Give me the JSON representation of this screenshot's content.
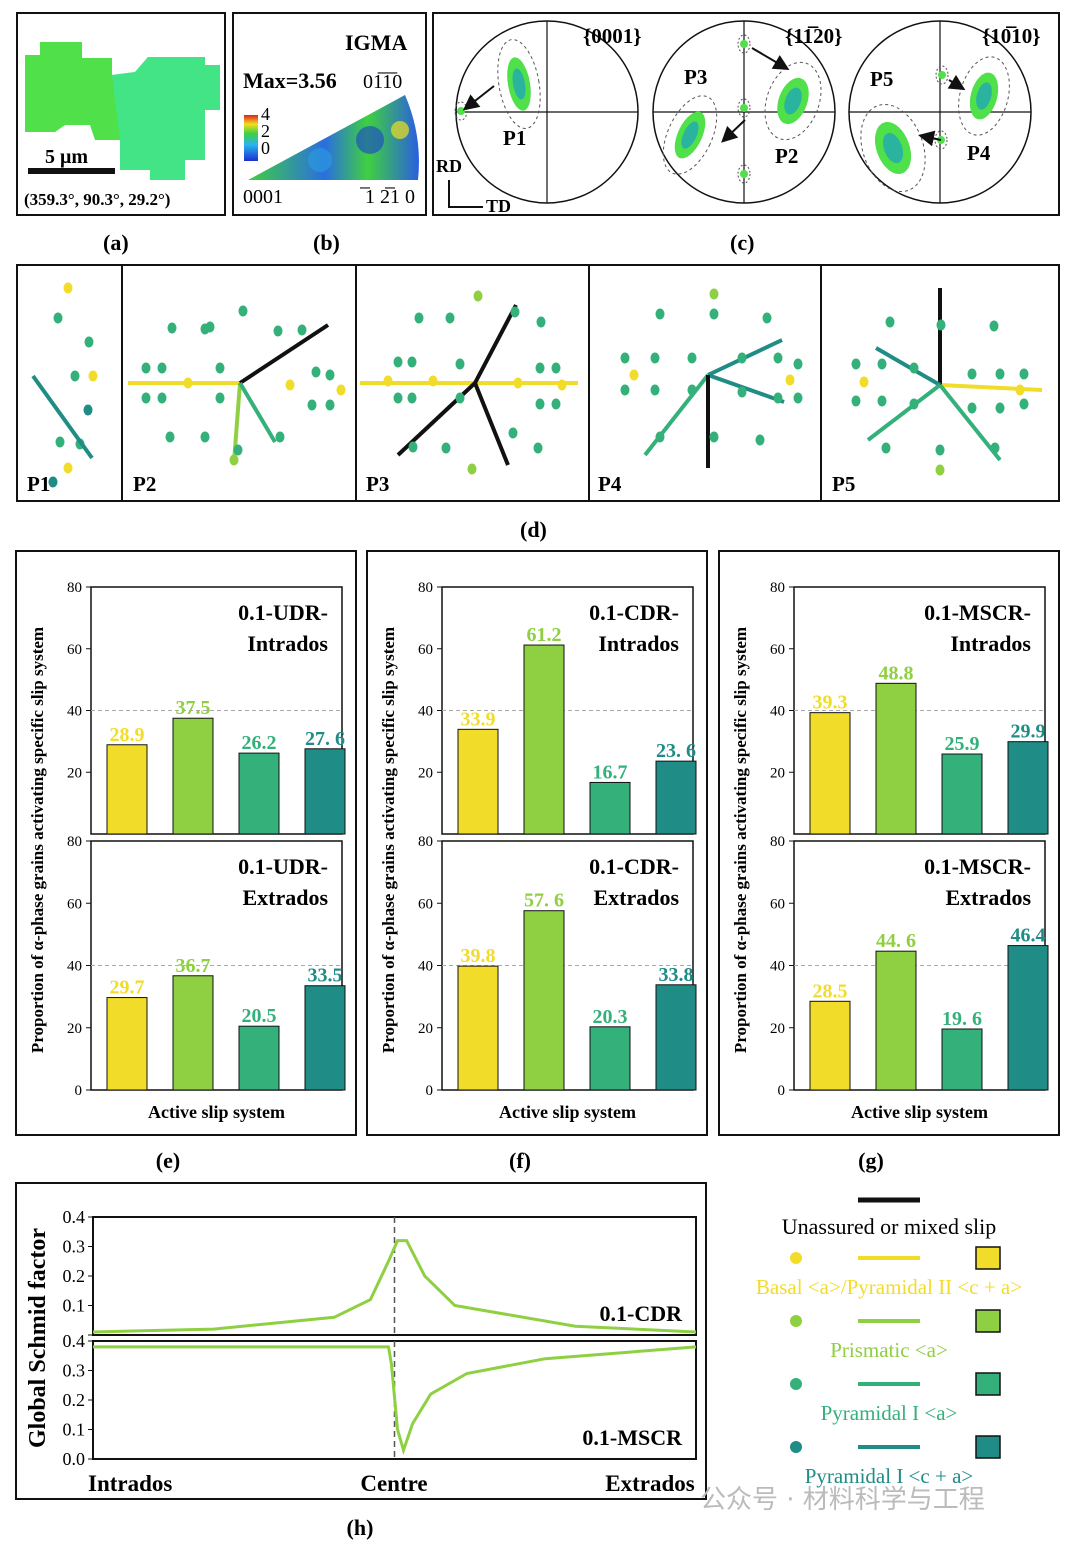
{
  "colors": {
    "basal": "#f2dc2a",
    "prismatic": "#8fcf42",
    "pyrI_a": "#34b07a",
    "pyrI_ca": "#1f8c86",
    "black": "#111111",
    "grain": "#4fe04a",
    "grain2": "#3fe6a0"
  },
  "panel_labels": [
    "(a)",
    "(b)",
    "(c)",
    "(d)",
    "(e)",
    "(f)",
    "(g)",
    "(h)"
  ],
  "panel_a": {
    "scale": "5 μm",
    "euler": "(359.3°, 90.3°, 29.2°)"
  },
  "panel_b": {
    "title": "IGMA",
    "max": "Max=3.56",
    "corner_top": "01̅1̅0",
    "corner_bl": "0001",
    "corner_br": "̅1 2̅1 0",
    "bar_ticks": [
      "4",
      "2",
      "0"
    ]
  },
  "panel_c": {
    "pf1": "{0001}",
    "pf2": "{11̅20}",
    "pf3": "{10̅10}",
    "rd": "RD",
    "td": "TD",
    "p_labels": [
      "P1",
      "P3",
      "P2",
      "P5",
      "P4"
    ]
  },
  "panel_d": {
    "labels": [
      "P1",
      "P2",
      "P3",
      "P4",
      "P5"
    ]
  },
  "chart_data": [
    {
      "type": "bar",
      "panel": "e-top",
      "title": [
        "0.1-UDR-",
        "Intrados"
      ],
      "values": [
        28.9,
        37.5,
        26.2,
        27.6
      ],
      "labels": [
        "28.9",
        "37.5",
        "26.2",
        "27. 6"
      ],
      "ylim": [
        0,
        80
      ]
    },
    {
      "type": "bar",
      "panel": "e-bottom",
      "title": [
        "0.1-UDR-",
        "Extrados"
      ],
      "values": [
        29.7,
        36.7,
        20.5,
        33.5
      ],
      "labels": [
        "29.7",
        "36.7",
        "20.5",
        "33.5"
      ],
      "ylim": [
        0,
        80
      ]
    },
    {
      "type": "bar",
      "panel": "f-top",
      "title": [
        "0.1-CDR-",
        "Intrados"
      ],
      "values": [
        33.9,
        61.2,
        16.7,
        23.6
      ],
      "labels": [
        "33.9",
        "61.2",
        "16.7",
        "23. 6"
      ],
      "ylim": [
        0,
        80
      ]
    },
    {
      "type": "bar",
      "panel": "f-bottom",
      "title": [
        "0.1-CDR-",
        "Extrados"
      ],
      "values": [
        39.8,
        57.6,
        20.3,
        33.8
      ],
      "labels": [
        "39.8",
        "57. 6",
        "20.3",
        "33.8"
      ],
      "ylim": [
        0,
        80
      ]
    },
    {
      "type": "bar",
      "panel": "g-top",
      "title": [
        "0.1-MSCR-",
        "Intrados"
      ],
      "values": [
        39.3,
        48.8,
        25.9,
        29.9
      ],
      "labels": [
        "39.3",
        "48.8",
        "25.9",
        "29.9"
      ],
      "ylim": [
        0,
        80
      ]
    },
    {
      "type": "bar",
      "panel": "g-bottom",
      "title": [
        "0.1-MSCR-",
        "Extrados"
      ],
      "values": [
        28.5,
        44.6,
        19.6,
        46.4
      ],
      "labels": [
        "28.5",
        "44. 6",
        "19. 6",
        "46.4"
      ],
      "ylim": [
        0,
        80
      ]
    },
    {
      "type": "line",
      "panel": "h-top",
      "title": "0.1-CDR",
      "ylim": [
        0,
        0.4
      ],
      "x": [
        0,
        0.2,
        0.4,
        0.46,
        0.49,
        0.505,
        0.52,
        0.55,
        0.6,
        0.8,
        1
      ],
      "y": [
        0.01,
        0.02,
        0.06,
        0.12,
        0.25,
        0.32,
        0.32,
        0.2,
        0.1,
        0.03,
        0.01
      ]
    },
    {
      "type": "line",
      "panel": "h-bottom",
      "title": "0.1-MSCR",
      "ylim": [
        0,
        0.4
      ],
      "x": [
        0,
        0.49,
        0.495,
        0.505,
        0.515,
        0.53,
        0.56,
        0.62,
        0.75,
        1
      ],
      "y": [
        0.38,
        0.38,
        0.32,
        0.1,
        0.03,
        0.12,
        0.22,
        0.29,
        0.34,
        0.38
      ]
    }
  ],
  "axes": {
    "ylabel_bar": "Proportion of α-phase grains activating specific slip system",
    "xlabel_bar": "Active slip system",
    "yticks_bar": [
      "0",
      "20",
      "40",
      "60",
      "80"
    ],
    "ylabel_h": "Global Schmid factor",
    "yticks_h": [
      "0.0",
      "0.1",
      "0.2",
      "0.3",
      "0.4"
    ],
    "xticks_h": [
      "Intrados",
      "Centre",
      "Extrados"
    ]
  },
  "legend": [
    "Unassured or mixed slip",
    "Basal <a>/Pyramidal II <c + a>",
    "Prismatic <a>",
    "Pyramidal I <a>",
    "Pyramidal I <c + a>"
  ],
  "watermark": "公众号 · 材料科学与工程"
}
